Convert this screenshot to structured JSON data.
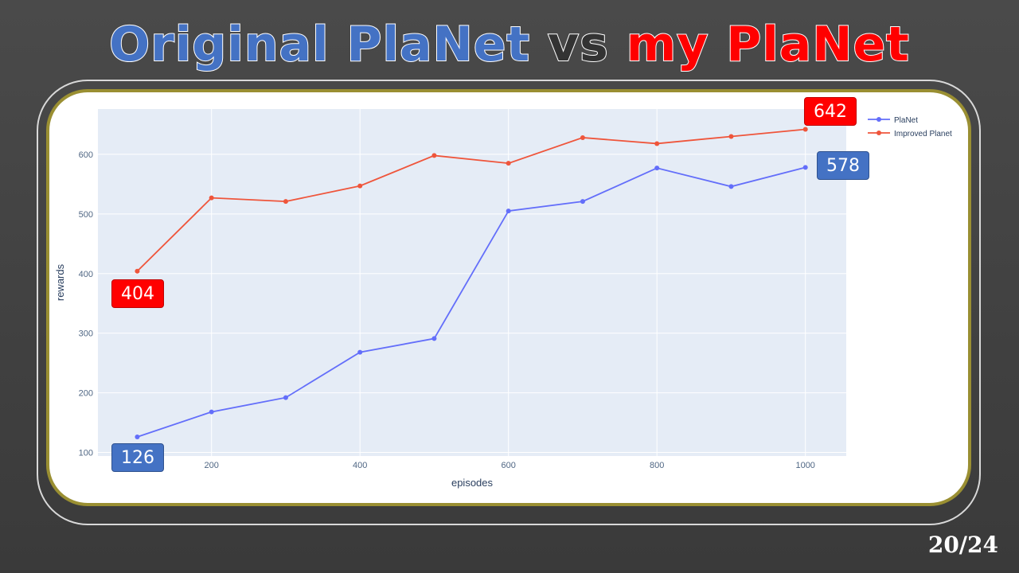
{
  "slide": {
    "title_part1": "Original PlaNet",
    "title_part2": "vs",
    "title_part3": "my PlaNet",
    "page_number": "20/24"
  },
  "colors": {
    "planet": "#636efa",
    "improved": "#ef553b",
    "plot_bg": "#e5ecf6",
    "callout_red": "#ff0000",
    "callout_blue": "#4472c4"
  },
  "callouts": [
    {
      "text": "642",
      "color": "red"
    },
    {
      "text": "578",
      "color": "blue"
    },
    {
      "text": "404",
      "color": "red"
    },
    {
      "text": "126",
      "color": "blue"
    }
  ],
  "chart_data": {
    "type": "line",
    "xlabel": "episodes",
    "ylabel": "rewards",
    "xlim": [
      47,
      1055
    ],
    "ylim": [
      94,
      676
    ],
    "xticks": [
      200,
      400,
      600,
      800,
      1000
    ],
    "yticks": [
      100,
      200,
      300,
      400,
      500,
      600
    ],
    "grid": true,
    "legend_position": "top-right",
    "x": [
      100,
      200,
      300,
      400,
      500,
      600,
      700,
      800,
      900,
      1000
    ],
    "series": [
      {
        "name": "PlaNet",
        "values": [
          126,
          168,
          192,
          268,
          291,
          505,
          521,
          577,
          546,
          578
        ]
      },
      {
        "name": "Improved Planet",
        "values": [
          404,
          527,
          521,
          547,
          598,
          585,
          628,
          618,
          630,
          642
        ]
      }
    ]
  }
}
